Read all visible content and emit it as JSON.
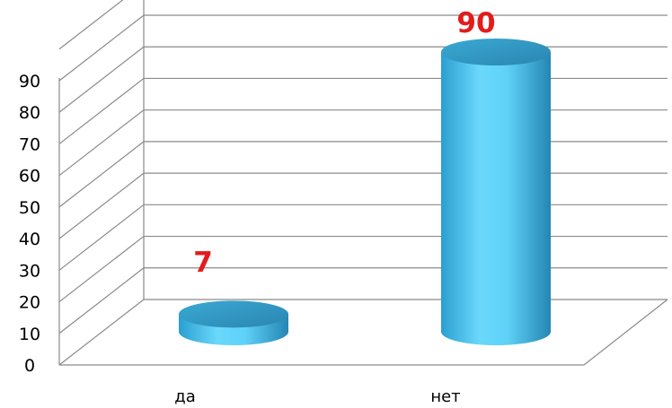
{
  "chart_data": {
    "type": "bar",
    "style": "3d-cylinder",
    "categories": [
      "да",
      "нет"
    ],
    "values": [
      7,
      90
    ],
    "data_labels": [
      "7",
      "90"
    ],
    "ylim": [
      0,
      90
    ],
    "yticks": [
      0,
      10,
      20,
      30,
      40,
      50,
      60,
      70,
      80,
      90
    ],
    "grid": true,
    "legend": false,
    "colors": {
      "bar_side": "#4cc6ec",
      "bar_top": "#2f93bd",
      "data_label": "#e31b1b",
      "grid": "#8a8a8a"
    }
  }
}
